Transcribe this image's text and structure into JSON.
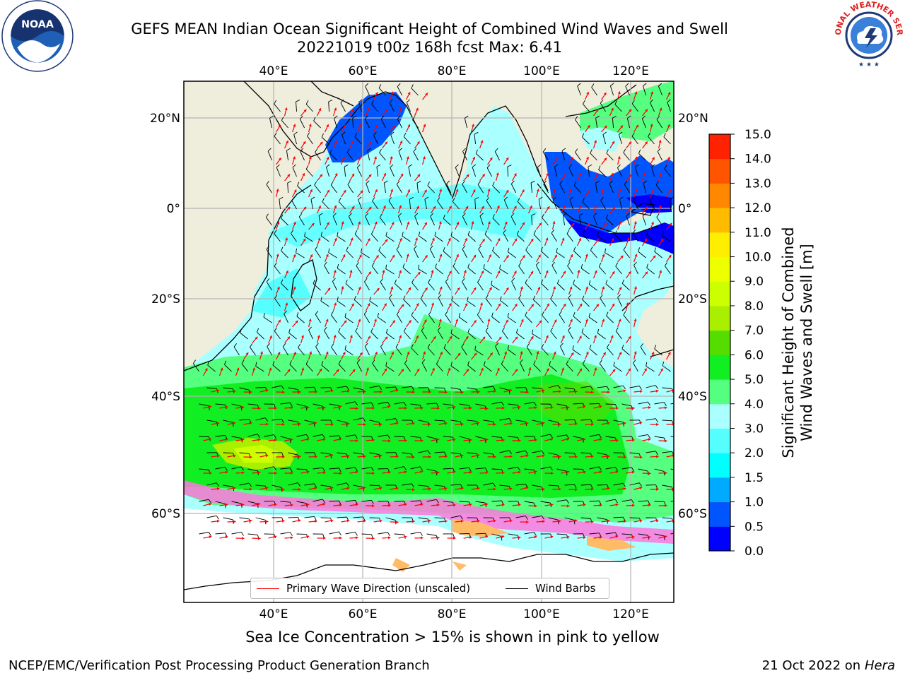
{
  "title": {
    "line1": "GEFS MEAN Indian Ocean Significant Height of Combined Wind Waves and Swell",
    "line2": "20221019 t00z 168h fcst   Max: 6.41"
  },
  "logos": {
    "left": {
      "text": "NOAA",
      "icon": "noaa-logo-icon"
    },
    "right": {
      "text": "NATIONAL WEATHER SERVICE",
      "icon": "nws-logo-icon"
    }
  },
  "map": {
    "lon_top_labels": [
      "40°E",
      "60°E",
      "80°E",
      "100°E",
      "120°E"
    ],
    "lon_bottom_labels": [
      "40°E",
      "60°E",
      "80°E",
      "100°E",
      "120°E"
    ],
    "lat_left_labels": [
      "20°N",
      "0°",
      "20°S",
      "40°S",
      "60°S"
    ],
    "lat_right_labels": [
      "20°N",
      "0°",
      "20°S",
      "40°S",
      "60°S"
    ],
    "colors": {
      "land": "#efeddc",
      "grid": "#b4b4b4",
      "wave_arrow": "#ff0000",
      "wind_barb": "#000000"
    },
    "legend": {
      "primary_wave": "Primary Wave Direction (unscaled)",
      "wind_barbs": "Wind Barbs"
    }
  },
  "colorbar": {
    "label_line1": "Significant Height of Combined",
    "label_line2": "Wind Waves and Swell [m]",
    "ticks": [
      "0.0",
      "0.5",
      "1.0",
      "1.5",
      "2.0",
      "3.0",
      "4.0",
      "5.0",
      "6.0",
      "7.0",
      "8.0",
      "9.0",
      "10.0",
      "11.0",
      "12.0",
      "13.0",
      "14.0",
      "15.0"
    ],
    "colors": [
      "#0000ff",
      "#0055ff",
      "#00aaff",
      "#00ffff",
      "#55ffff",
      "#aaffff",
      "#55ff7f",
      "#11ee22",
      "#55dd00",
      "#aaee00",
      "#ccff00",
      "#eeff00",
      "#ffee00",
      "#ffbb00",
      "#ff8800",
      "#ff5500",
      "#ff2200",
      "#ff0000"
    ]
  },
  "footnote": "Sea Ice Concentration > 15% is shown in pink to yellow",
  "footer": {
    "left": "NCEP/EMC/Verification Post Processing Product Generation Branch",
    "right_prefix": "21 Oct 2022 on ",
    "right_machine": "Hera"
  }
}
